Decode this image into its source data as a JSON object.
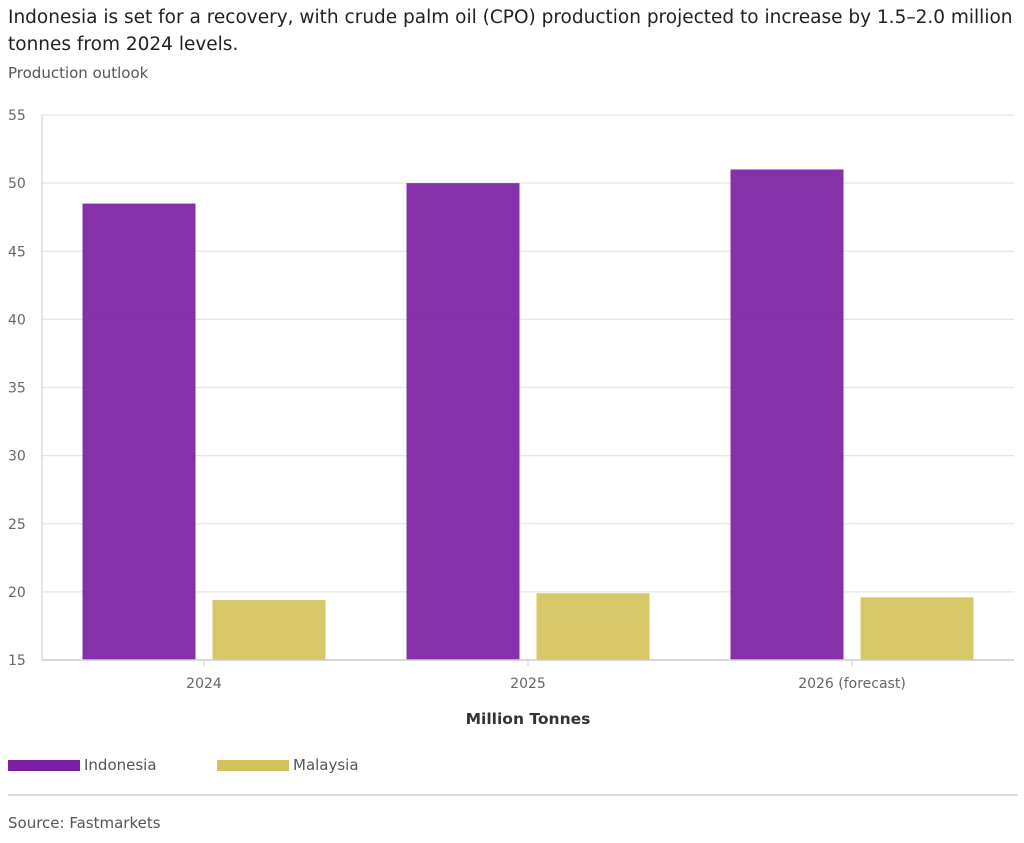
{
  "header": {
    "title": "Indonesia is set for a recovery, with crude palm oil (CPO) production projected to increase by 1.5–2.0 million tonnes from 2024 levels.",
    "subtitle": "Production outlook"
  },
  "footer": {
    "source": "Source: Fastmarkets"
  },
  "colors": {
    "indonesia": "#7b1fa2",
    "malaysia": "#d4c25c",
    "grid": "#e6e6e6",
    "axis": "#cccccc"
  },
  "chart_data": {
    "type": "bar",
    "title": "Production outlook",
    "xlabel": "Million Tonnes",
    "ylabel": "",
    "ylim": [
      15,
      55
    ],
    "yticks": [
      15,
      20,
      25,
      30,
      35,
      40,
      45,
      50,
      55
    ],
    "grid": true,
    "legend_position": "bottom-left",
    "categories": [
      "2024",
      "2025",
      "2026 (forecast)"
    ],
    "series": [
      {
        "name": "Indonesia",
        "values": [
          48.5,
          50.0,
          51.0
        ]
      },
      {
        "name": "Malaysia",
        "values": [
          19.4,
          19.9,
          19.6
        ]
      }
    ]
  }
}
